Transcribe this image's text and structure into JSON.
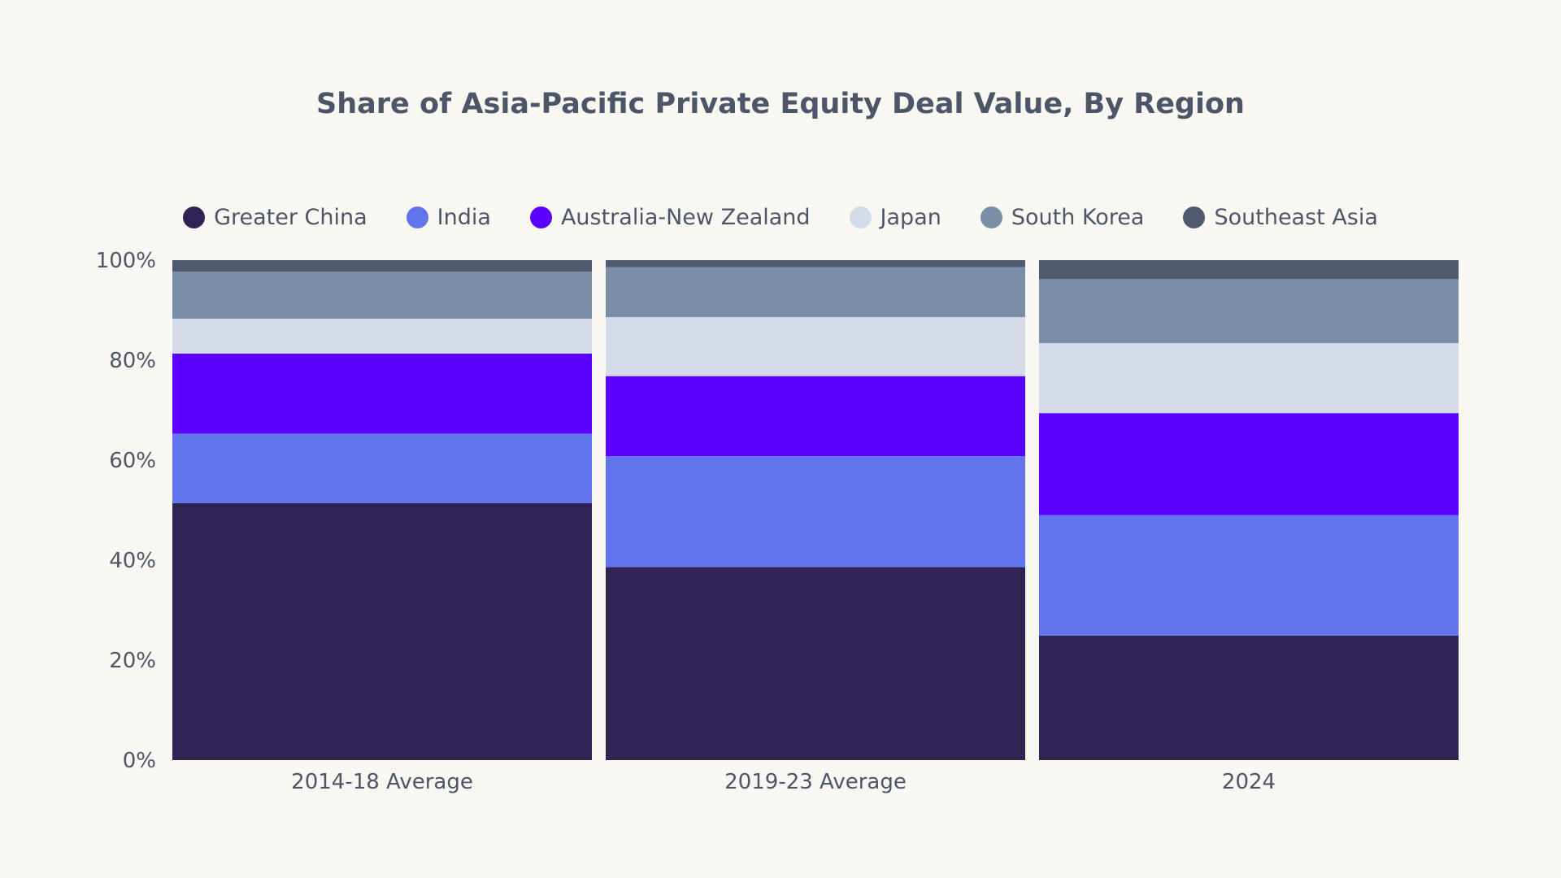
{
  "chart_data": {
    "type": "bar",
    "stacked": true,
    "title": "Share of Asia-Pacific Private Equity Deal Value, By Region",
    "xlabel": "",
    "ylabel": "",
    "ylim": [
      0,
      100
    ],
    "yticks": [
      0,
      20,
      40,
      60,
      80,
      100
    ],
    "ytick_labels": [
      "0%",
      "20%",
      "40%",
      "60%",
      "80%",
      "100%"
    ],
    "grid": false,
    "legend_position": "top-center",
    "categories": [
      "2014-18 Average",
      "2019-23 Average",
      "2024"
    ],
    "series": [
      {
        "name": "Greater China",
        "color": "#2e2352",
        "values": [
          51.4,
          38.6,
          24.9
        ]
      },
      {
        "name": "India",
        "color": "#6274eb",
        "values": [
          13.9,
          22.2,
          24.1
        ]
      },
      {
        "name": "Australia-New Zealand",
        "color": "#5c00ff",
        "values": [
          16.0,
          16.0,
          20.4
        ]
      },
      {
        "name": "Japan",
        "color": "#d3dbe8",
        "values": [
          7.0,
          11.8,
          14.0
        ]
      },
      {
        "name": "South Korea",
        "color": "#7a8ea8",
        "values": [
          9.4,
          10.0,
          12.8
        ]
      },
      {
        "name": "Southeast Asia",
        "color": "#4f5a6e",
        "values": [
          2.3,
          1.4,
          3.8
        ]
      }
    ]
  }
}
